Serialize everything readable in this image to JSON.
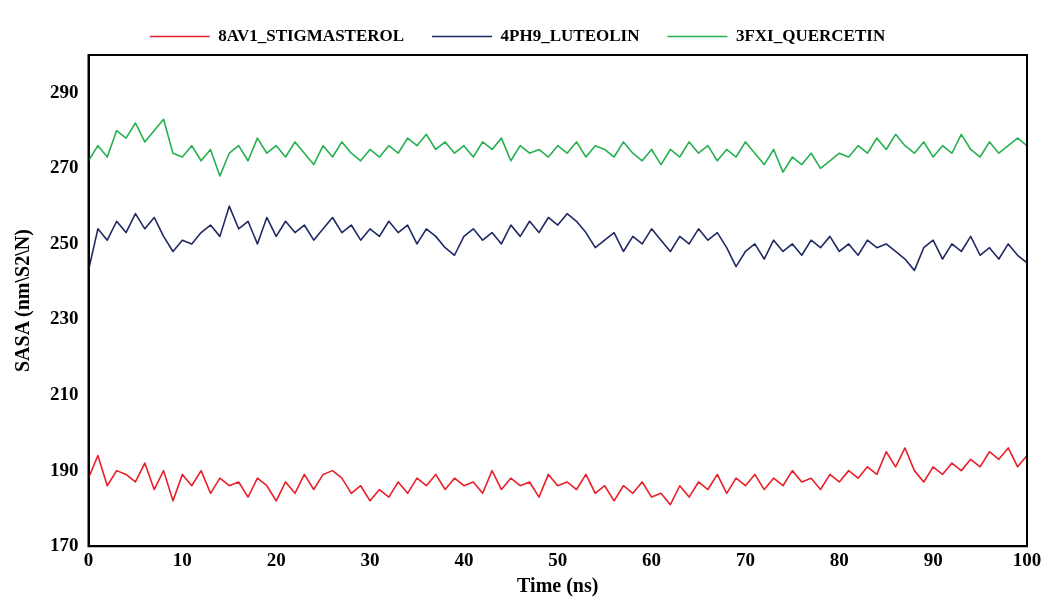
{
  "chart_data": {
    "type": "line",
    "xlabel": "Time (ns)",
    "ylabel": "SASA (nm\\S2\\N)",
    "legend": "top",
    "xlim": [
      0,
      100
    ],
    "xticks": [
      0,
      10,
      20,
      30,
      40,
      50,
      60,
      70,
      80,
      90,
      100
    ],
    "ylim": [
      170,
      300
    ],
    "yticks": [
      170,
      190,
      210,
      230,
      250,
      270,
      290
    ],
    "x": [
      0,
      1,
      2,
      3,
      4,
      5,
      6,
      7,
      8,
      9,
      10,
      11,
      12,
      13,
      14,
      15,
      16,
      17,
      18,
      19,
      20,
      21,
      22,
      23,
      24,
      25,
      26,
      27,
      28,
      29,
      30,
      31,
      32,
      33,
      34,
      35,
      36,
      37,
      38,
      39,
      40,
      41,
      42,
      43,
      44,
      45,
      46,
      47,
      48,
      49,
      50,
      51,
      52,
      53,
      54,
      55,
      56,
      57,
      58,
      59,
      60,
      61,
      62,
      63,
      64,
      65,
      66,
      67,
      68,
      69,
      70,
      71,
      72,
      73,
      74,
      75,
      76,
      77,
      78,
      79,
      80,
      81,
      82,
      83,
      84,
      85,
      86,
      87,
      88,
      89,
      90,
      91,
      92,
      93,
      94,
      95,
      96,
      97,
      98,
      99,
      100
    ],
    "series": [
      {
        "name": "8AV1_STIGMASTEROL",
        "color": "#e8202a",
        "values": [
          188,
          194,
          186,
          190,
          189,
          187,
          192,
          185,
          190,
          182,
          189,
          186,
          190,
          184,
          188,
          186,
          187,
          183,
          188,
          186,
          182,
          187,
          184,
          189,
          185,
          189,
          190,
          188,
          184,
          186,
          182,
          185,
          183,
          187,
          184,
          188,
          186,
          189,
          185,
          188,
          186,
          187,
          184,
          190,
          185,
          188,
          186,
          187,
          183,
          189,
          186,
          187,
          185,
          189,
          184,
          186,
          182,
          186,
          184,
          187,
          183,
          184,
          181,
          186,
          183,
          187,
          185,
          189,
          184,
          188,
          186,
          189,
          185,
          188,
          186,
          190,
          187,
          188,
          185,
          189,
          187,
          190,
          188,
          191,
          189,
          195,
          191,
          196,
          190,
          187,
          191,
          189,
          192,
          190,
          193,
          191,
          195,
          193,
          196,
          191,
          194
        ]
      },
      {
        "name": "4PH9_LUTEOLIN",
        "color": "#1f2a63",
        "values": [
          243,
          254,
          251,
          256,
          253,
          258,
          254,
          257,
          252,
          248,
          251,
          250,
          253,
          255,
          252,
          260,
          254,
          256,
          250,
          257,
          252,
          256,
          253,
          255,
          251,
          254,
          257,
          253,
          255,
          251,
          254,
          252,
          256,
          253,
          255,
          250,
          254,
          252,
          249,
          247,
          252,
          254,
          251,
          253,
          250,
          255,
          252,
          256,
          253,
          257,
          255,
          258,
          256,
          253,
          249,
          251,
          253,
          248,
          252,
          250,
          254,
          251,
          248,
          252,
          250,
          254,
          251,
          253,
          249,
          244,
          248,
          250,
          246,
          251,
          248,
          250,
          247,
          251,
          249,
          252,
          248,
          250,
          247,
          251,
          249,
          250,
          248,
          246,
          243,
          249,
          251,
          246,
          250,
          248,
          252,
          247,
          249,
          246,
          250,
          247,
          245
        ]
      },
      {
        "name": "3FXI_QUERCETIN",
        "color": "#27b04f",
        "values": [
          272,
          276,
          273,
          280,
          278,
          282,
          277,
          280,
          283,
          274,
          273,
          276,
          272,
          275,
          268,
          274,
          276,
          272,
          278,
          274,
          276,
          273,
          277,
          274,
          271,
          276,
          273,
          277,
          274,
          272,
          275,
          273,
          276,
          274,
          278,
          276,
          279,
          275,
          277,
          274,
          276,
          273,
          277,
          275,
          278,
          272,
          276,
          274,
          275,
          273,
          276,
          274,
          277,
          273,
          276,
          275,
          273,
          277,
          274,
          272,
          275,
          271,
          275,
          273,
          277,
          274,
          276,
          272,
          275,
          273,
          277,
          274,
          271,
          275,
          269,
          273,
          271,
          274,
          270,
          272,
          274,
          273,
          276,
          274,
          278,
          275,
          279,
          276,
          274,
          277,
          273,
          276,
          274,
          279,
          275,
          273,
          277,
          274,
          276,
          278,
          276
        ]
      }
    ]
  }
}
